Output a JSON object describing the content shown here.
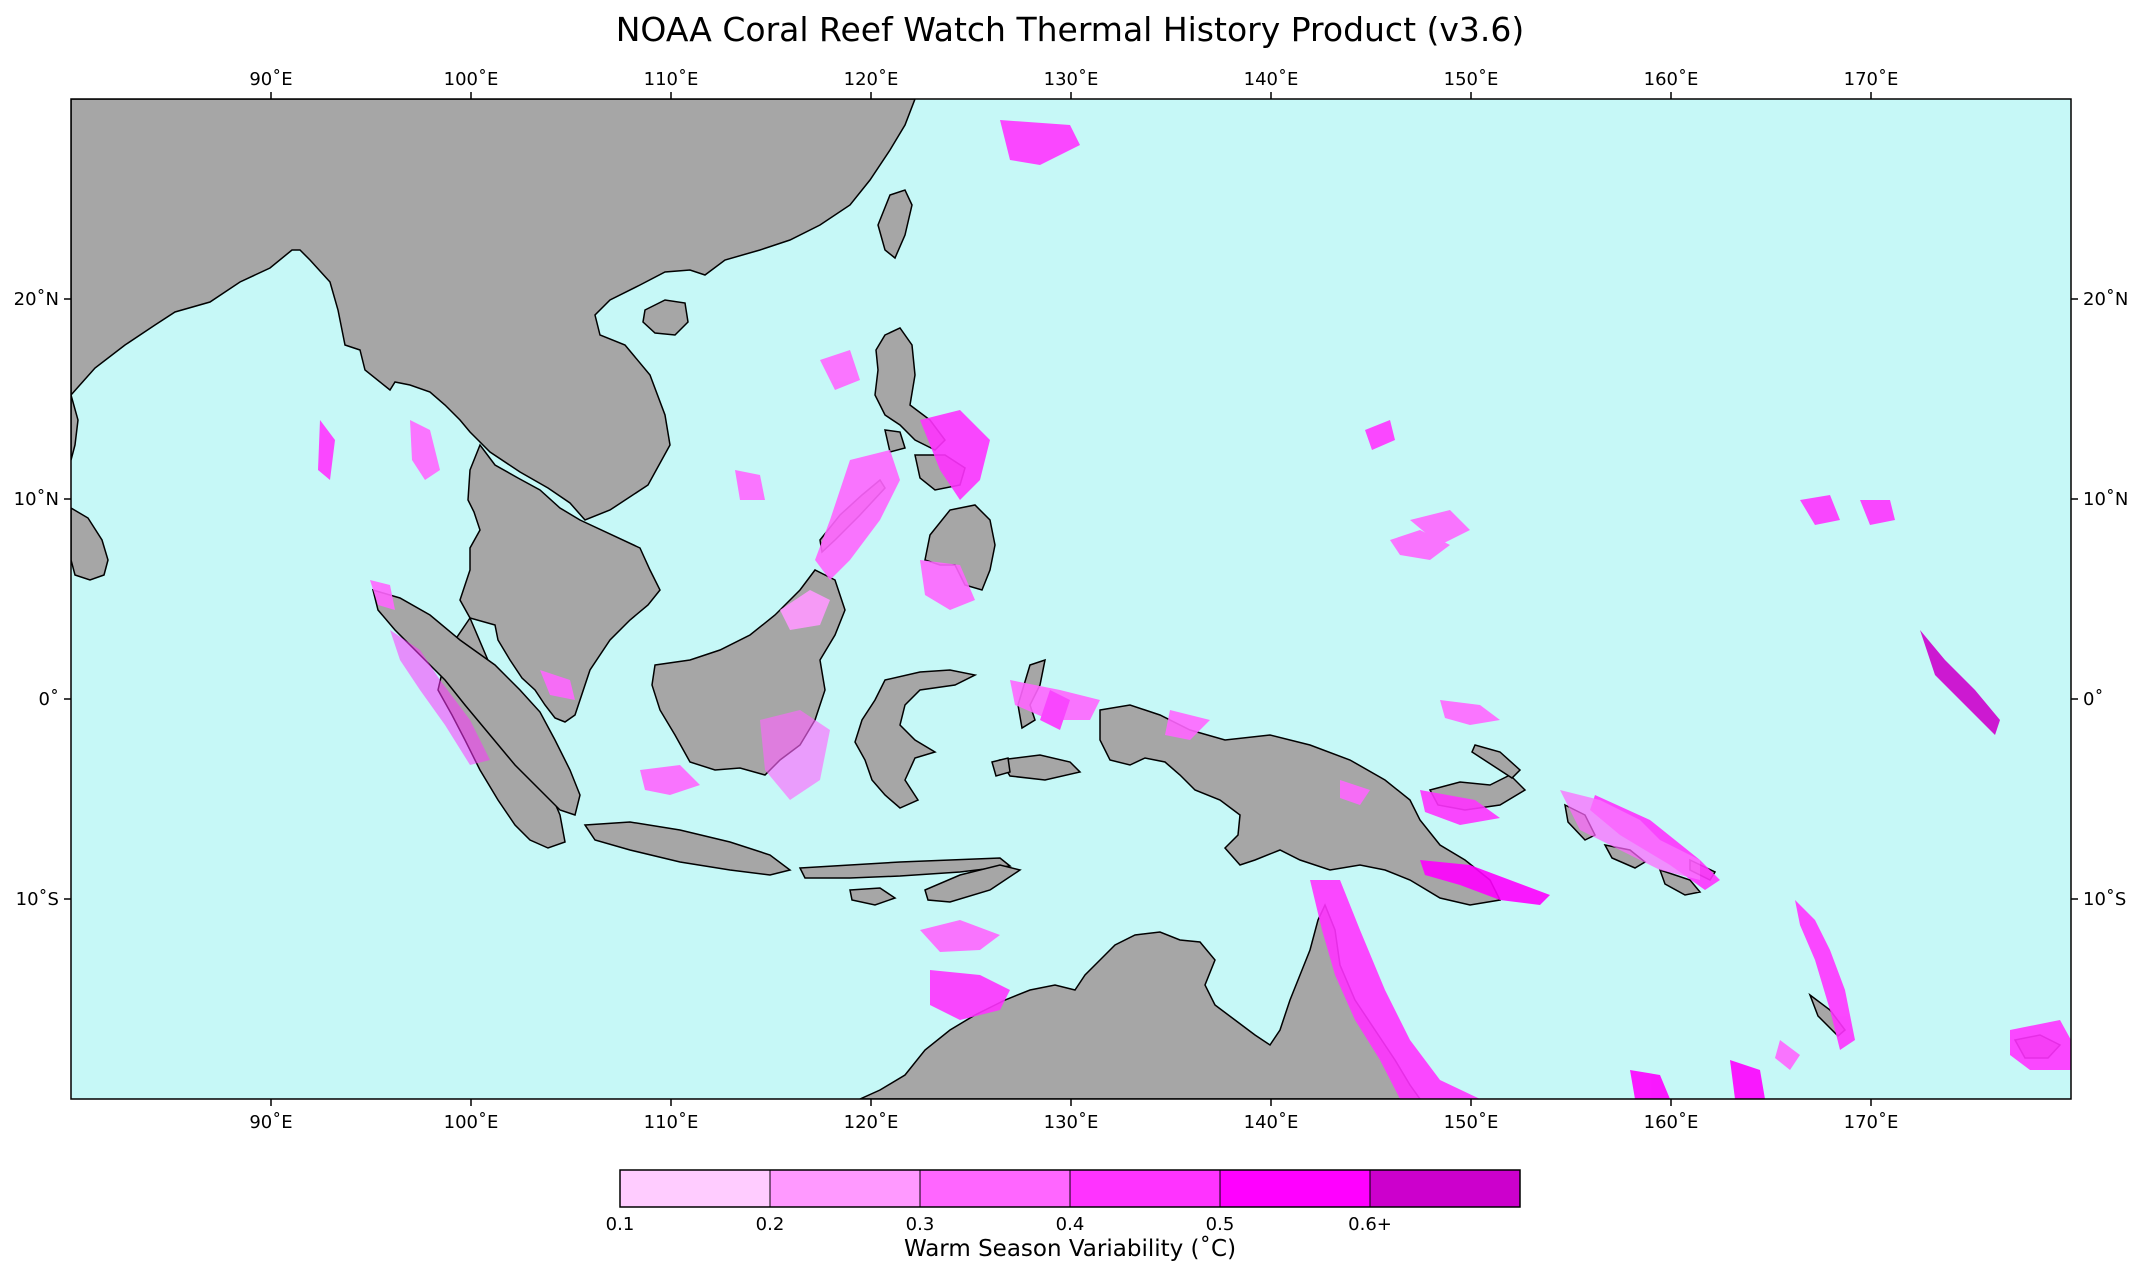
{
  "title": "NOAA Coral Reef Watch Thermal History Product (v3.6)",
  "map": {
    "extent": {
      "lon": [
        80,
        180
      ],
      "lat": [
        -20,
        30
      ]
    },
    "colors": {
      "ocean": "#c6f8f7",
      "land": "#a6a6a6",
      "coast": "#000000"
    },
    "lon_ticks": [
      "90˚E",
      "100˚E",
      "110˚E",
      "120˚E",
      "130˚E",
      "140˚E",
      "150˚E",
      "160˚E",
      "170˚E"
    ],
    "lat_ticks": [
      "20˚N",
      "10˚N",
      "0˚",
      "10˚S"
    ]
  },
  "colorbar": {
    "label": "Warm Season Variability (˚C)",
    "ticks": [
      "0.1",
      "0.2",
      "0.3",
      "0.4",
      "0.5",
      "0.6+"
    ],
    "colors": [
      "#ffccff",
      "#ff99ff",
      "#ff66ff",
      "#ff33ff",
      "#ff00ff",
      "#cc00cc"
    ]
  }
}
